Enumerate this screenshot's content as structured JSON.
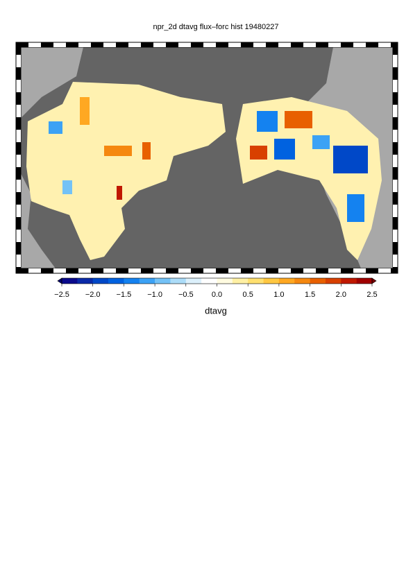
{
  "title": "npr_2d dtavg flux–forc hist 19480227",
  "colorbar": {
    "label": "dtavg",
    "lim": [
      -2.5,
      2.5
    ],
    "ticks": [
      {
        "value": -2.5,
        "label": "−2.5"
      },
      {
        "value": -2.0,
        "label": "−2.0"
      },
      {
        "value": -1.5,
        "label": "−1.5"
      },
      {
        "value": -1.0,
        "label": "−1.0"
      },
      {
        "value": -0.5,
        "label": "−0.5"
      },
      {
        "value": 0,
        "label": "0.0"
      },
      0.5,
      {
        "value": 1.0,
        "label": "1.0"
      },
      1.5,
      {
        "value": 2.0,
        "label": "2.0"
      },
      2.5
    ],
    "colors": [
      "#0a0a8c",
      "#0a2aa8",
      "#0048c8",
      "#0062e0",
      "#1482f0",
      "#3ca2f5",
      "#74c2f6",
      "#acdcf8",
      "#dcf0fb",
      "#ffffff",
      "#fffbe0",
      "#fff0a4",
      "#ffe070",
      "#ffc842",
      "#ffa822",
      "#f58810",
      "#e86000",
      "#d84000",
      "#c01800",
      "#a00000"
    ],
    "under_color": "#00006e",
    "over_color": "#780000"
  }
}
